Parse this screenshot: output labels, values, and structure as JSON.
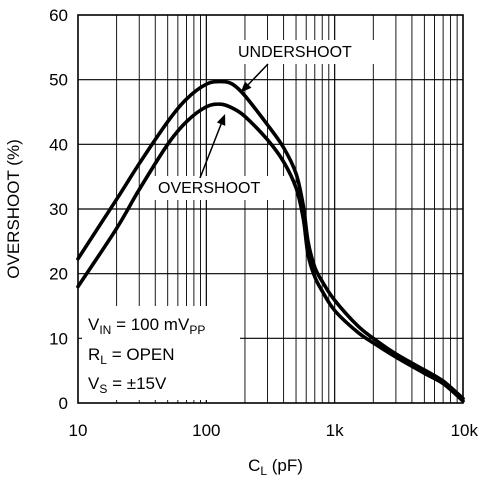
{
  "chart_data": {
    "type": "line",
    "title": "",
    "xlabel": {
      "main": "C",
      "sub": "L",
      "rest": " (pF)"
    },
    "ylabel": "OVERSHOOT (%)",
    "x_scale": "log",
    "xlim": [
      10,
      10000
    ],
    "ylim": [
      0,
      60
    ],
    "grid": true,
    "x_tick_labels": [
      "10",
      "100",
      "1k",
      "10k"
    ],
    "y_tick_labels": [
      "0",
      "10",
      "20",
      "30",
      "40",
      "50",
      "60"
    ],
    "y_ticks": [
      0,
      10,
      20,
      30,
      40,
      50,
      60
    ],
    "x_ticks": [
      10,
      100,
      1000,
      10000
    ],
    "series": [
      {
        "name": "UNDERSHOOT",
        "x": [
          10,
          20,
          30,
          50,
          70,
          100,
          130,
          160,
          200,
          300,
          400,
          500,
          570,
          620,
          700,
          800,
          1000,
          1500,
          2000,
          3000,
          5000,
          7000,
          10000
        ],
        "y": [
          22.3,
          31.5,
          37,
          43.5,
          47,
          49.3,
          49.7,
          49.3,
          47.5,
          43,
          39.5,
          35.5,
          30.5,
          25,
          21,
          18.8,
          15.9,
          12,
          10,
          7.6,
          5.1,
          3.4,
          0.7
        ]
      },
      {
        "name": "OVERSHOOT",
        "x": [
          10,
          20,
          30,
          50,
          70,
          100,
          130,
          160,
          200,
          300,
          400,
          500,
          570,
          620,
          700,
          800,
          1000,
          1500,
          2000,
          3000,
          5000,
          7000,
          10000
        ],
        "y": [
          18,
          27,
          33,
          40,
          43.5,
          45.8,
          46.2,
          45.6,
          44.3,
          40.7,
          37.3,
          33.3,
          28.5,
          23,
          19.5,
          17.3,
          14.3,
          11,
          9.3,
          7.1,
          4.6,
          3,
          0.3
        ]
      }
    ],
    "annotations": [
      {
        "text": "UNDERSHOOT",
        "points_to": "UNDERSHOOT",
        "target_x": 185,
        "target_y": 48
      },
      {
        "text": "OVERSHOOT",
        "points_to": "OVERSHOOT",
        "target_x": 140,
        "target_y": 44.7
      }
    ],
    "conditions": [
      {
        "main": "V",
        "sub": "IN",
        "rest": " = 100 mV",
        "sub2": "PP"
      },
      {
        "main": "R",
        "sub": "L",
        "rest": " = OPEN",
        "sub2": ""
      },
      {
        "main": "V",
        "sub": "S",
        "rest": " = ±15V",
        "sub2": ""
      }
    ],
    "colors": {
      "line": "#000000",
      "grid": "#000000",
      "background": "#ffffff"
    }
  }
}
